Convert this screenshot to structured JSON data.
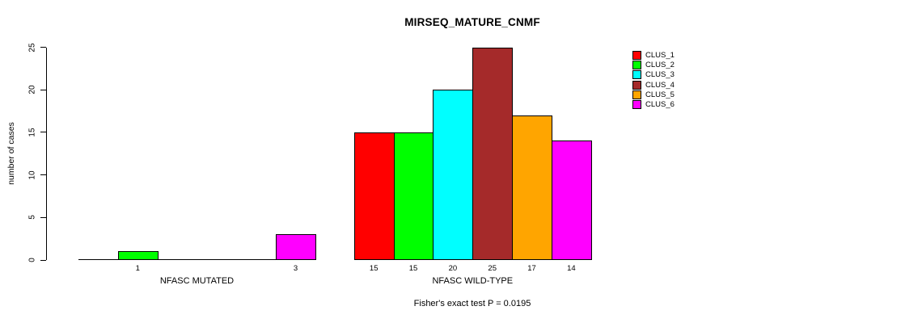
{
  "chart_data": {
    "type": "bar",
    "title": "MIRSEQ_MATURE_CNMF",
    "ylabel": "number of cases",
    "xlabel": "",
    "ylim": [
      0,
      25
    ],
    "yticks": [
      0,
      5,
      10,
      15,
      20,
      25
    ],
    "grid": false,
    "legend_position": "right",
    "clusters": [
      "CLUS_1",
      "CLUS_2",
      "CLUS_3",
      "CLUS_4",
      "CLUS_5",
      "CLUS_6"
    ],
    "colors": [
      "#ff0000",
      "#00ff00",
      "#00ffff",
      "#a52a2a",
      "#ffa500",
      "#ff00ff"
    ],
    "groups": [
      {
        "label": "NFASC MUTATED",
        "values": [
          0,
          1,
          0,
          0,
          0,
          3
        ],
        "bar_labels": [
          "",
          "1",
          "",
          "",
          "",
          "3"
        ]
      },
      {
        "label": "NFASC WILD-TYPE",
        "values": [
          15,
          15,
          20,
          25,
          17,
          14
        ],
        "bar_labels": [
          "15",
          "15",
          "20",
          "25",
          "17",
          "14"
        ]
      }
    ],
    "annotation": "Fisher's exact test P = 0.0195"
  }
}
